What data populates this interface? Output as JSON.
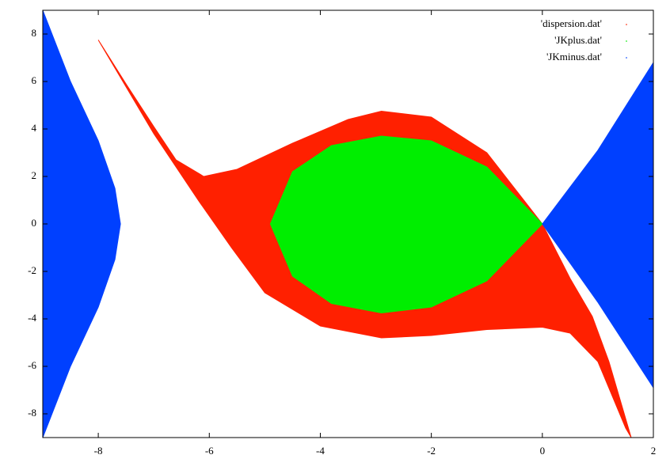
{
  "chart_data": {
    "type": "area",
    "xlim": [
      -9,
      2
    ],
    "ylim": [
      -9,
      9
    ],
    "xticks": [
      -8,
      -6,
      -4,
      -2,
      0,
      2
    ],
    "yticks": [
      -8,
      -6,
      -4,
      -2,
      0,
      2,
      4,
      6,
      8
    ],
    "legend": "upper right",
    "series": [
      {
        "name": "'dispersion.dat'",
        "color": "#ff2000",
        "x": [
          -8,
          -7.5,
          -7,
          -6.6,
          -6.1,
          -5.5,
          -4.5,
          -3.5,
          -2.9,
          -2,
          -1,
          0,
          0.5,
          0.9,
          1.2,
          1.6,
          1.5,
          1.0,
          0.5,
          0,
          -1,
          -2,
          -2.9,
          -4,
          -5,
          -5.6,
          -6.2,
          -7,
          -8
        ],
        "values": [
          7.75,
          5.9,
          4.1,
          2.7,
          2.0,
          2.3,
          3.4,
          4.4,
          4.75,
          4.5,
          3,
          0,
          -2.3,
          -3.9,
          -5.8,
          -9,
          -8.6,
          -5.8,
          -4.6,
          -4.35,
          -4.45,
          -4.7,
          -4.8,
          -4.3,
          -2.9,
          -1,
          1,
          3.8,
          7.75
        ]
      },
      {
        "name": "'JKplus.dat'",
        "color": "#00ee00",
        "x": [
          0,
          -1,
          -2,
          -2.9,
          -3.8,
          -4.5,
          -4.9,
          -4.5,
          -3.8,
          -2.9,
          -2,
          -1,
          0
        ],
        "values": [
          0,
          2.4,
          3.5,
          3.7,
          3.3,
          2.2,
          0,
          -2.2,
          -3.35,
          -3.75,
          -3.5,
          -2.4,
          0
        ]
      },
      {
        "name": "'JKminus.dat'",
        "color": "#0040ff",
        "x": [
          -9,
          -8.5,
          -8,
          -7.7,
          -7.6,
          -7.7,
          -8,
          -8.5,
          -9,
          null,
          0,
          1,
          2,
          2,
          1,
          0
        ],
        "values": [
          9,
          6,
          3.5,
          1.5,
          0,
          -1.5,
          -3.5,
          -6,
          -9,
          null,
          0,
          3.1,
          6.8,
          -6.9,
          -3.3,
          0
        ]
      }
    ]
  }
}
